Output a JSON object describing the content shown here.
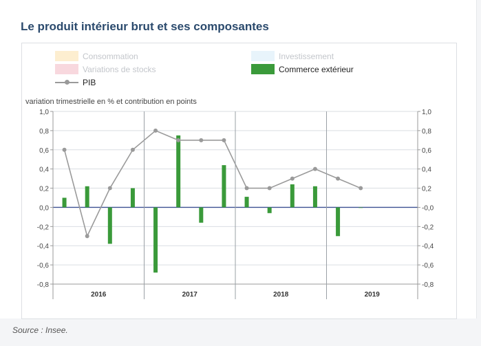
{
  "title": "Le produit intérieur brut et ses composantes",
  "source": "Source : Insee.",
  "legend": {
    "consommation": "Consommation",
    "investissement": "Investissement",
    "variations_stocks": "Variations de stocks",
    "commerce": "Commerce extérieur",
    "pib": "PIB"
  },
  "colors": {
    "consommation": "#fdeed0",
    "investissement": "#e8f4fb",
    "variations_stocks": "#f8d8de",
    "commerce": "#3a9a3a",
    "pib": "#9a9a9a",
    "zero_line": "#3b4f91"
  },
  "chart_data": {
    "type": "bar",
    "ylabel": "variation trimestrielle en % et contribution en points",
    "ylim": [
      -0.8,
      1.0
    ],
    "yticks_left": [
      "1,0",
      "0,8",
      "0,6",
      "0,4",
      "0,2",
      "0,0",
      "-0,2",
      "-0,4",
      "-0,6",
      "-0,8"
    ],
    "yticks_right": [
      "1,0",
      "0,8",
      "0,6",
      "0,4",
      "0,2",
      "-0,0",
      "-0,2",
      "-0,4",
      "-0,6",
      "-0,8"
    ],
    "years": [
      "2016",
      "2017",
      "2018",
      "2019"
    ],
    "quarters_per_year": [
      4,
      4,
      4,
      4
    ],
    "series": [
      {
        "name": "Commerce extérieur",
        "type": "bar",
        "values": [
          0.1,
          0.22,
          -0.38,
          0.2,
          -0.68,
          0.75,
          -0.16,
          0.44,
          0.11,
          -0.06,
          0.24,
          0.22,
          -0.3,
          0.0
        ]
      },
      {
        "name": "PIB",
        "type": "line",
        "values": [
          0.6,
          -0.3,
          0.2,
          0.6,
          0.8,
          0.7,
          0.7,
          0.7,
          0.2,
          0.2,
          0.3,
          0.4,
          0.3,
          0.2
        ]
      }
    ],
    "grid": true,
    "legend_position": "top"
  }
}
